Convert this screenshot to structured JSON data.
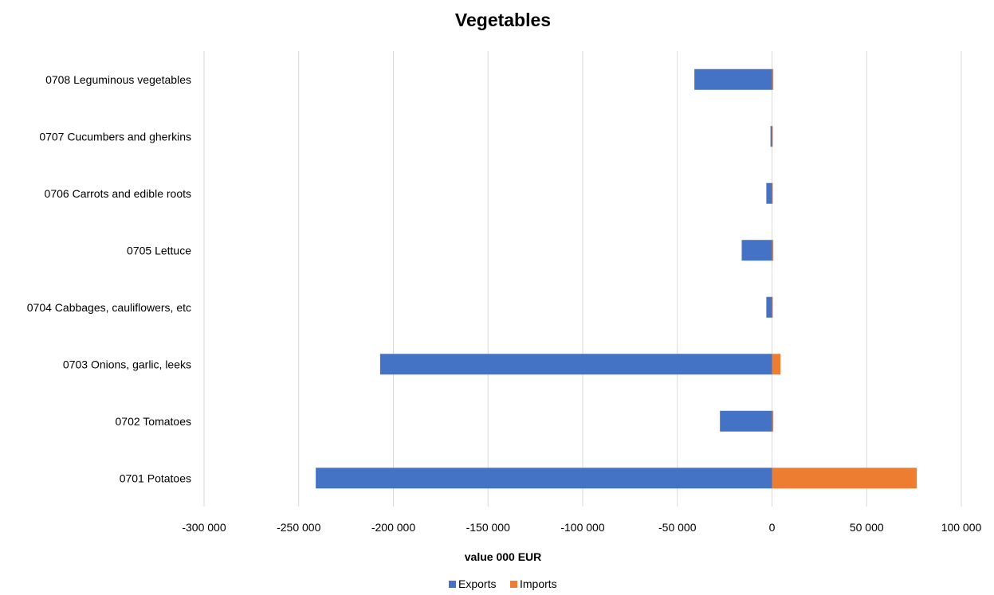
{
  "chart_data": {
    "type": "bar",
    "orientation": "horizontal",
    "stacked": true,
    "title": "Vegetables",
    "xlabel": "value  000 EUR",
    "ylabel": "",
    "xlim": [
      -300000,
      100000
    ],
    "xticks": [
      -300000,
      -250000,
      -200000,
      -150000,
      -100000,
      -50000,
      0,
      50000,
      100000
    ],
    "xtick_labels": [
      "-300 000",
      "-250 000",
      "-200 000",
      "-150 000",
      "-100 000",
      "-50 000",
      "0",
      "50 000",
      "100 000"
    ],
    "grid": true,
    "legend_position": "bottom",
    "categories": [
      "0701 Potatoes",
      "0702 Tomatoes",
      "0703 Onions, garlic, leeks",
      "0704 Cabbages, cauliflowers, etc",
      "0705 Lettuce",
      "0706 Carrots and edible roots",
      "0707 Cucumbers and gherkins",
      "0708 Leguminous vegetables"
    ],
    "series": [
      {
        "name": "Exports",
        "color": "#4472c4",
        "values": [
          -241000,
          -27500,
          -207000,
          -3000,
          -16000,
          -3000,
          -800,
          -41000
        ]
      },
      {
        "name": "Imports",
        "color": "#ed7d31",
        "values": [
          76500,
          700,
          4500,
          200,
          700,
          200,
          100,
          700
        ]
      }
    ]
  }
}
